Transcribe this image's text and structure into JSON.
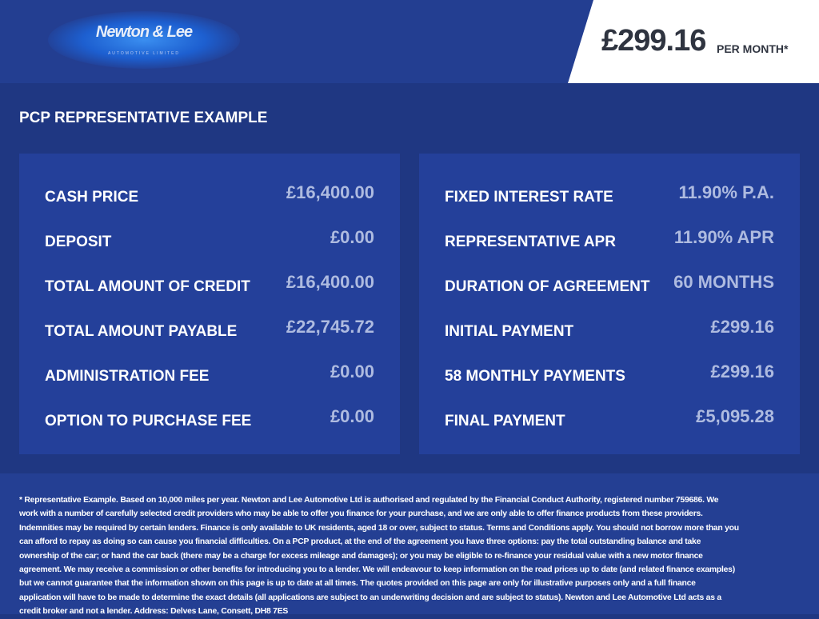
{
  "header": {
    "logo_text": "Newton & Lee",
    "logo_subtitle": "AUTOMOTIVE LIMITED",
    "price": "£299.16",
    "per_month": "PER MONTH*"
  },
  "title": "PCP REPRESENTATIVE EXAMPLE",
  "left": [
    {
      "label": "CASH PRICE",
      "value": "£16,400.00"
    },
    {
      "label": "DEPOSIT",
      "value": "£0.00"
    },
    {
      "label": "TOTAL AMOUNT OF CREDIT",
      "value": "£16,400.00"
    },
    {
      "label": "TOTAL AMOUNT PAYABLE",
      "value": "£22,745.72"
    },
    {
      "label": "ADMINISTRATION FEE",
      "value": "£0.00"
    },
    {
      "label": "OPTION TO PURCHASE FEE",
      "value": "£0.00"
    }
  ],
  "right": [
    {
      "label": "FIXED INTEREST RATE",
      "value": "11.90% P.A."
    },
    {
      "label": "REPRESENTATIVE APR",
      "value": "11.90% APR"
    },
    {
      "label": "DURATION OF AGREEMENT",
      "value": "60 MONTHS"
    },
    {
      "label": "INITIAL PAYMENT",
      "value": "£299.16"
    },
    {
      "label": "58 MONTHLY PAYMENTS",
      "value": "£299.16"
    },
    {
      "label": "FINAL PAYMENT",
      "value": "£5,095.28"
    }
  ],
  "disclaimer": "* Representative Example. Based on 10,000 miles per year. Newton and Lee Automotive Ltd is authorised and regulated by the Financial Conduct Authority, registered number 759686. We work with a number of carefully selected credit providers who may be able to offer you finance for your purchase, and we are only able to offer finance products from these providers. Indemnities may be required by certain lenders. Finance is only available to UK residents, aged 18 or over, subject to status. Terms and Conditions apply. You should not borrow more than you can afford to repay as doing so can cause you financial difficulties. On a PCP product, at the end of the agreement you have three options: pay the total outstanding balance and take ownership of the car; or hand the car back (there may be a charge for excess mileage and damages); or you may be eligible to re-finance your residual value with a new motor finance agreement. We may receive a commission or other benefits for introducing you to a lender. We will endeavour to keep information on the road prices up to date (and related finance examples) but we cannot guarantee that the information shown on this page is up to date at all times. The quotes provided on this page are only for illustrative purposes only and a full finance application will have to be made to determine the exact details (all applications are subject to an underwriting decision and are subject to status). Newton and Lee Automotive Ltd acts as a credit broker and not a lender. Address: Delves Lane, Consett, DH8 7ES"
}
